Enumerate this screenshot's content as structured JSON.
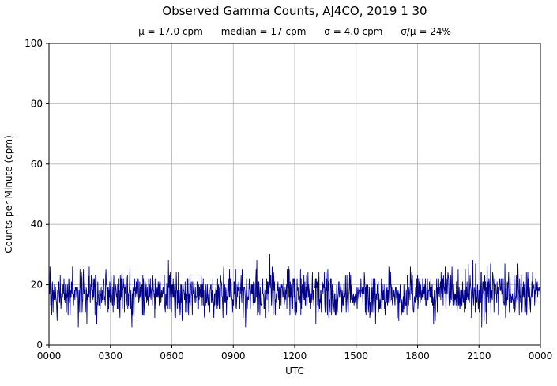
{
  "chart_data": {
    "type": "line",
    "title": "Observed Gamma Counts, AJ4CO, 2019 1 30",
    "stats_line": [
      "μ = 17.0 cpm",
      "median = 17 cpm",
      "σ = 4.0 cpm",
      "σ/μ = 24%"
    ],
    "xlabel": "UTC",
    "ylabel": "Counts per Minute (cpm)",
    "x_tick_labels": [
      "0000",
      "0300",
      "0600",
      "0900",
      "1200",
      "1500",
      "1800",
      "2100",
      "0000"
    ],
    "x_tick_minutes": [
      0,
      180,
      360,
      540,
      720,
      900,
      1080,
      1260,
      1440
    ],
    "xlim_minutes": [
      0,
      1440
    ],
    "y_ticks": [
      0,
      20,
      40,
      60,
      80,
      100
    ],
    "ylim": [
      0,
      100
    ],
    "grid": true,
    "legend": "none",
    "colors": {
      "line": "#00008b",
      "grid": "#b3b3b3",
      "axis": "#000000",
      "background": "#ffffff"
    },
    "series": {
      "name": "observed-gamma-counts-cpm",
      "description": "One sample per minute over 24 hours, integer counts, noisy around the mean",
      "n_points": 1441,
      "sample_interval_minutes": 1,
      "mean_cpm": 17.0,
      "median_cpm": 17,
      "sigma_cpm": 4.0,
      "sigma_over_mu_pct": 24,
      "observed_min_approx_cpm": 8,
      "observed_max_approx_cpm": 30,
      "prng_seed": 20190130
    }
  }
}
